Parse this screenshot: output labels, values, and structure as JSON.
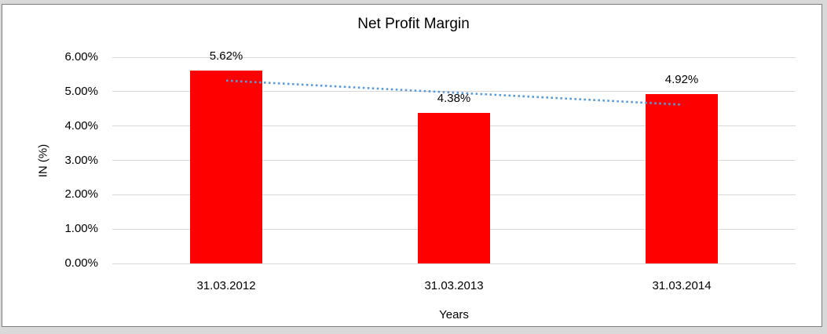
{
  "frame": {
    "outer_background": "#d9d9d9",
    "border_color": "#7f7f7f",
    "chart_background": "#ffffff"
  },
  "chart_data": {
    "type": "bar",
    "title": "Net Profit Margin",
    "categories": [
      "31.03.2012",
      "31.03.2013",
      "31.03.2014"
    ],
    "values": [
      5.62,
      4.38,
      4.92
    ],
    "data_labels": [
      "5.62%",
      "4.38%",
      "4.92%"
    ],
    "xlabel": "Years",
    "ylabel": "IN (%)",
    "ylim": [
      0,
      6
    ],
    "ytick_step": 1,
    "ytick_labels": [
      "0.00%",
      "1.00%",
      "2.00%",
      "3.00%",
      "4.00%",
      "5.00%",
      "6.00%"
    ],
    "grid": true,
    "legend": "none",
    "bar_color": "#ff0000",
    "gridline_color": "#d9d9d9",
    "text_color": "#000000",
    "trendline": {
      "kind": "linear",
      "style": "dotted",
      "color": "#5b9bd5",
      "start_value": 5.32,
      "end_value": 4.62
    }
  }
}
